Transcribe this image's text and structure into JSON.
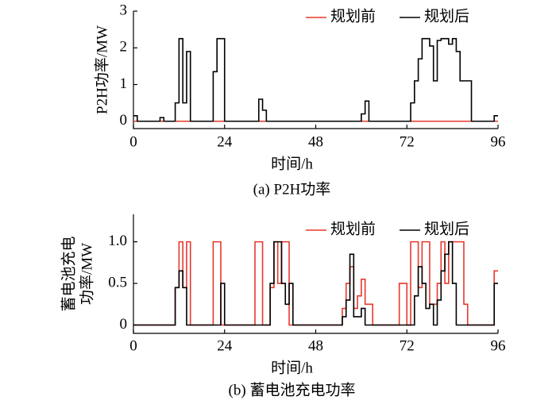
{
  "chart_data": [
    {
      "type": "line",
      "caption": "(a)  P2H功率",
      "xlabel": "时间/h",
      "ylabel": "P2H功率/MW",
      "xlim": [
        0,
        96
      ],
      "xticks": [
        0,
        24,
        48,
        72,
        96
      ],
      "ylim": [
        -0.2,
        3
      ],
      "yticks": [
        0,
        1,
        2,
        3
      ],
      "legend": "top-right",
      "step": true,
      "x": [
        0,
        1,
        2,
        3,
        4,
        5,
        6,
        7,
        8,
        9,
        10,
        11,
        12,
        13,
        14,
        15,
        16,
        17,
        18,
        19,
        20,
        21,
        22,
        23,
        24,
        25,
        26,
        27,
        28,
        29,
        30,
        31,
        32,
        33,
        34,
        35,
        36,
        37,
        38,
        39,
        40,
        41,
        42,
        43,
        44,
        45,
        46,
        47,
        48,
        49,
        50,
        51,
        52,
        53,
        54,
        55,
        56,
        57,
        58,
        59,
        60,
        61,
        62,
        63,
        64,
        65,
        66,
        67,
        68,
        69,
        70,
        71,
        72,
        73,
        74,
        75,
        76,
        77,
        78,
        79,
        80,
        81,
        82,
        83,
        84,
        85,
        86,
        87,
        88,
        89,
        90,
        91,
        92,
        93,
        94,
        95
      ],
      "series": [
        {
          "name": "规划前",
          "color": "#e8382c",
          "values": [
            0,
            0,
            0,
            0,
            0,
            0,
            0,
            0,
            0,
            0,
            0,
            0,
            0,
            0,
            0,
            0,
            0,
            0,
            0,
            0,
            0,
            0,
            0,
            0,
            0,
            0,
            0,
            0,
            0,
            0,
            0,
            0,
            0,
            0,
            0,
            0,
            0,
            0,
            0,
            0,
            0,
            0,
            0,
            0,
            0,
            0,
            0,
            0,
            0,
            0,
            0,
            0,
            0,
            0,
            0,
            0,
            0,
            0,
            0,
            0,
            0,
            0,
            0,
            0,
            0,
            0,
            0,
            0,
            0,
            0,
            0,
            0,
            0,
            0,
            0,
            0,
            0,
            0,
            0,
            0,
            0,
            0,
            0,
            0,
            0,
            0,
            0,
            0,
            0,
            0,
            0,
            0,
            0,
            0,
            0,
            0
          ]
        },
        {
          "name": "规划后",
          "color": "#000000",
          "values": [
            0.15,
            0,
            0,
            0,
            0,
            0,
            0,
            0.1,
            0,
            0,
            0,
            0.5,
            2.25,
            0.5,
            1.9,
            0,
            0,
            0,
            0,
            0,
            0,
            1.35,
            2.25,
            2.25,
            0,
            0,
            0,
            0,
            0,
            0,
            0,
            0,
            0,
            0.6,
            0.3,
            0,
            0,
            0,
            0,
            0,
            0,
            0,
            0,
            0,
            0,
            0,
            0,
            0,
            0,
            0,
            0,
            0,
            0,
            0,
            0,
            0,
            0,
            0,
            0,
            0,
            0.2,
            0.55,
            0,
            0,
            0,
            0,
            0,
            0,
            0,
            0,
            0,
            0,
            0,
            0.5,
            1.1,
            1.7,
            2.25,
            2.25,
            2.05,
            1.1,
            2.2,
            2.25,
            2.25,
            2.1,
            2.25,
            1.9,
            1.1,
            1.1,
            1.1,
            0,
            0,
            0,
            0,
            0,
            0,
            0.15
          ]
        }
      ]
    },
    {
      "type": "line",
      "caption": "(b)  蓄电池充电功率",
      "xlabel": "时间/h",
      "ylabel": [
        "蓄电池充电",
        "功率/MW"
      ],
      "xlim": [
        0,
        96
      ],
      "xticks": [
        0,
        24,
        48,
        72,
        96
      ],
      "ylim": [
        -0.1,
        1.33
      ],
      "yticks": [
        0,
        0.5,
        {
          "value": 1,
          "label": "1.0"
        }
      ],
      "legend": "top-right",
      "step": true,
      "x": [
        0,
        1,
        2,
        3,
        4,
        5,
        6,
        7,
        8,
        9,
        10,
        11,
        12,
        13,
        14,
        15,
        16,
        17,
        18,
        19,
        20,
        21,
        22,
        23,
        24,
        25,
        26,
        27,
        28,
        29,
        30,
        31,
        32,
        33,
        34,
        35,
        36,
        37,
        38,
        39,
        40,
        41,
        42,
        43,
        44,
        45,
        46,
        47,
        48,
        49,
        50,
        51,
        52,
        53,
        54,
        55,
        56,
        57,
        58,
        59,
        60,
        61,
        62,
        63,
        64,
        65,
        66,
        67,
        68,
        69,
        70,
        71,
        72,
        73,
        74,
        75,
        76,
        77,
        78,
        79,
        80,
        81,
        82,
        83,
        84,
        85,
        86,
        87,
        88,
        89,
        90,
        91,
        92,
        93,
        94,
        95
      ],
      "series": [
        {
          "name": "规划前",
          "color": "#e8382c",
          "values": [
            0,
            0,
            0,
            0,
            0,
            0,
            0,
            0,
            0,
            0,
            0,
            0.45,
            1,
            0.45,
            1,
            0,
            0,
            0,
            0,
            0,
            0,
            1,
            1,
            0,
            0,
            0,
            0,
            0,
            0,
            0,
            0,
            0,
            1,
            1,
            0,
            0,
            0.45,
            1,
            0.5,
            1,
            1,
            0,
            0,
            0,
            0,
            0,
            0,
            0,
            0,
            0,
            0,
            0,
            0,
            0,
            0,
            0.2,
            0.5,
            0.7,
            0.2,
            0.35,
            0.55,
            0.25,
            0.25,
            0,
            0,
            0,
            0,
            0,
            0,
            0,
            0.5,
            0.5,
            0,
            1,
            1,
            0.45,
            1,
            1,
            0.25,
            0.25,
            0.5,
            1,
            0.5,
            1,
            1,
            1,
            1,
            0.25,
            0,
            0,
            0,
            0,
            0,
            0,
            0,
            0.65
          ]
        },
        {
          "name": "规划后",
          "color": "#000000",
          "values": [
            0,
            0,
            0,
            0,
            0,
            0,
            0,
            0,
            0,
            0,
            0,
            0.45,
            0.65,
            0.45,
            0,
            0,
            0,
            0,
            0,
            0,
            0,
            0,
            0,
            0.5,
            0,
            0,
            0,
            0,
            0,
            0,
            0,
            0,
            0,
            0,
            0,
            0,
            0.5,
            1,
            1,
            0.5,
            0.25,
            0.5,
            0,
            0,
            0,
            0,
            0,
            0,
            0,
            0,
            0,
            0,
            0,
            0,
            0,
            0.1,
            0.3,
            0.85,
            0.1,
            0.1,
            0.2,
            0,
            0,
            0,
            0,
            0,
            0,
            0,
            0,
            0,
            0,
            0,
            0,
            0,
            0.35,
            0.7,
            0.5,
            0.2,
            0.25,
            0,
            0.3,
            0.65,
            0.85,
            1,
            0.5,
            0,
            0,
            0,
            0,
            0,
            0,
            0,
            0,
            0,
            0,
            0.5
          ]
        }
      ]
    }
  ]
}
